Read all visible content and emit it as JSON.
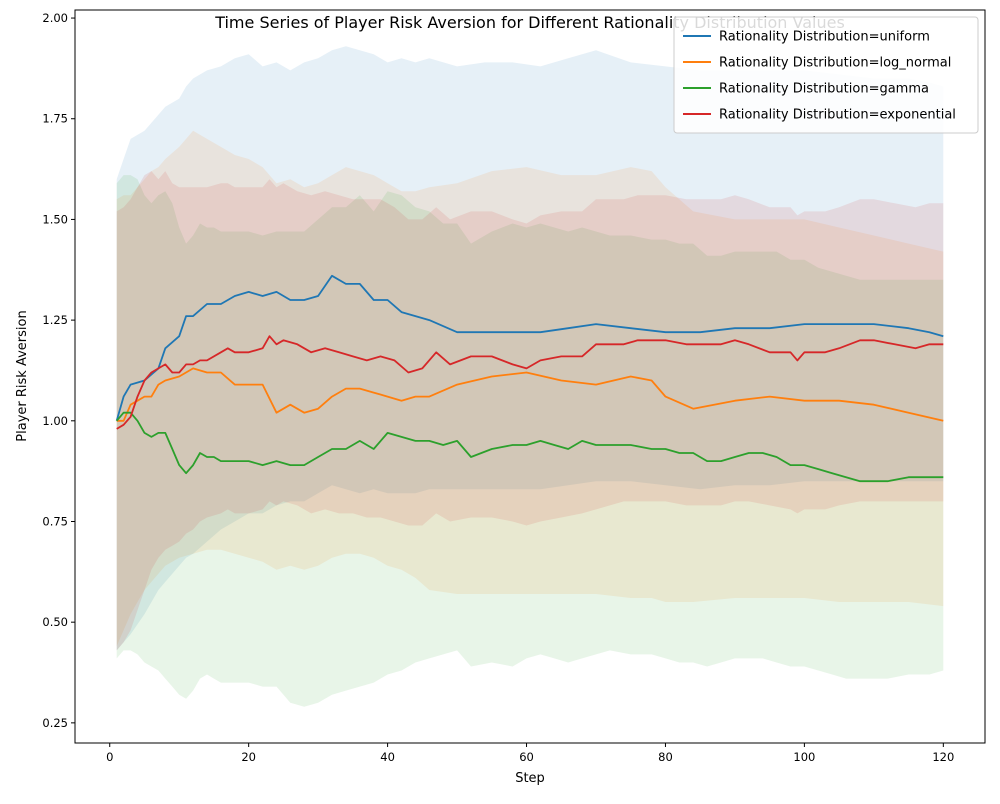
{
  "chart_data": {
    "type": "line",
    "title": "Time Series of Player Risk Aversion for Different Rationality Distribution Values",
    "xlabel": "Step",
    "ylabel": "Player Risk Aversion",
    "xlim": [
      -5,
      126
    ],
    "ylim": [
      0.2,
      2.02
    ],
    "xticks": [
      0,
      20,
      40,
      60,
      80,
      100,
      120
    ],
    "yticks": [
      0.25,
      0.5,
      0.75,
      1.0,
      1.25,
      1.5,
      1.75,
      2.0
    ],
    "legend_position": "upper-right",
    "grid": false,
    "band_opacity": 0.11,
    "series": [
      {
        "name": "Rationality Distribution=uniform",
        "color": "#1f77b4",
        "x": [
          1,
          2,
          3,
          5,
          7,
          8,
          10,
          11,
          12,
          14,
          16,
          18,
          20,
          22,
          24,
          26,
          28,
          30,
          32,
          34,
          36,
          38,
          40,
          42,
          44,
          46,
          50,
          54,
          58,
          62,
          66,
          70,
          75,
          80,
          85,
          90,
          95,
          100,
          105,
          110,
          115,
          118,
          120
        ],
        "y": [
          1.0,
          1.06,
          1.09,
          1.1,
          1.13,
          1.18,
          1.21,
          1.26,
          1.26,
          1.29,
          1.29,
          1.31,
          1.32,
          1.31,
          1.32,
          1.3,
          1.3,
          1.31,
          1.36,
          1.34,
          1.34,
          1.3,
          1.3,
          1.27,
          1.26,
          1.25,
          1.22,
          1.22,
          1.22,
          1.22,
          1.23,
          1.24,
          1.23,
          1.22,
          1.22,
          1.23,
          1.23,
          1.24,
          1.24,
          1.24,
          1.23,
          1.22,
          1.21
        ],
        "lower": [
          0.43,
          0.45,
          0.47,
          0.52,
          0.58,
          0.6,
          0.64,
          0.66,
          0.67,
          0.7,
          0.73,
          0.75,
          0.77,
          0.77,
          0.79,
          0.8,
          0.8,
          0.82,
          0.84,
          0.83,
          0.82,
          0.83,
          0.82,
          0.82,
          0.82,
          0.83,
          0.83,
          0.83,
          0.83,
          0.83,
          0.84,
          0.85,
          0.85,
          0.84,
          0.83,
          0.84,
          0.84,
          0.85,
          0.85,
          0.85,
          0.85,
          0.85,
          0.85
        ],
        "upper": [
          1.6,
          1.65,
          1.7,
          1.72,
          1.76,
          1.78,
          1.8,
          1.83,
          1.85,
          1.87,
          1.88,
          1.9,
          1.91,
          1.88,
          1.89,
          1.87,
          1.89,
          1.9,
          1.92,
          1.93,
          1.92,
          1.91,
          1.89,
          1.9,
          1.89,
          1.9,
          1.88,
          1.89,
          1.89,
          1.88,
          1.9,
          1.92,
          1.89,
          1.88,
          1.87,
          1.87,
          1.87,
          1.87,
          1.86,
          1.85,
          1.85,
          1.84,
          1.83
        ]
      },
      {
        "name": "Rationality Distribution=log_normal",
        "color": "#ff7f0e",
        "x": [
          1,
          2,
          3,
          4,
          5,
          6,
          7,
          8,
          10,
          12,
          14,
          16,
          18,
          20,
          22,
          24,
          26,
          28,
          30,
          32,
          34,
          36,
          38,
          40,
          42,
          44,
          46,
          50,
          55,
          60,
          65,
          70,
          75,
          78,
          80,
          84,
          90,
          95,
          100,
          105,
          110,
          115,
          120
        ],
        "y": [
          1.0,
          1.0,
          1.04,
          1.05,
          1.06,
          1.06,
          1.09,
          1.1,
          1.11,
          1.13,
          1.12,
          1.12,
          1.09,
          1.09,
          1.09,
          1.02,
          1.04,
          1.02,
          1.03,
          1.06,
          1.08,
          1.08,
          1.07,
          1.06,
          1.05,
          1.06,
          1.06,
          1.09,
          1.11,
          1.12,
          1.1,
          1.09,
          1.11,
          1.1,
          1.06,
          1.03,
          1.05,
          1.06,
          1.05,
          1.05,
          1.04,
          1.02,
          1.0
        ],
        "lower": [
          0.44,
          0.48,
          0.52,
          0.55,
          0.58,
          0.6,
          0.62,
          0.64,
          0.66,
          0.67,
          0.68,
          0.68,
          0.67,
          0.66,
          0.65,
          0.63,
          0.64,
          0.63,
          0.64,
          0.66,
          0.67,
          0.67,
          0.66,
          0.64,
          0.63,
          0.61,
          0.58,
          0.57,
          0.57,
          0.57,
          0.57,
          0.57,
          0.56,
          0.56,
          0.55,
          0.55,
          0.56,
          0.56,
          0.56,
          0.55,
          0.55,
          0.55,
          0.54
        ],
        "upper": [
          1.55,
          1.56,
          1.56,
          1.58,
          1.6,
          1.62,
          1.63,
          1.65,
          1.68,
          1.72,
          1.7,
          1.68,
          1.66,
          1.65,
          1.63,
          1.59,
          1.6,
          1.58,
          1.59,
          1.61,
          1.63,
          1.62,
          1.61,
          1.59,
          1.57,
          1.57,
          1.58,
          1.59,
          1.62,
          1.63,
          1.61,
          1.61,
          1.63,
          1.62,
          1.58,
          1.52,
          1.5,
          1.5,
          1.5,
          1.48,
          1.46,
          1.44,
          1.42
        ]
      },
      {
        "name": "Rationality Distribution=gamma",
        "color": "#2ca02c",
        "x": [
          1,
          2,
          3,
          4,
          5,
          6,
          7,
          8,
          9,
          10,
          11,
          12,
          13,
          14,
          15,
          16,
          18,
          20,
          22,
          24,
          26,
          28,
          30,
          32,
          34,
          36,
          38,
          40,
          42,
          44,
          46,
          48,
          50,
          52,
          55,
          58,
          60,
          62,
          64,
          66,
          68,
          70,
          72,
          75,
          78,
          80,
          82,
          84,
          86,
          88,
          90,
          92,
          94,
          96,
          98,
          100,
          102,
          104,
          106,
          108,
          110,
          112,
          115,
          118,
          120
        ],
        "y": [
          1.0,
          1.02,
          1.02,
          1.0,
          0.97,
          0.96,
          0.97,
          0.97,
          0.93,
          0.89,
          0.87,
          0.89,
          0.92,
          0.91,
          0.91,
          0.9,
          0.9,
          0.9,
          0.89,
          0.9,
          0.89,
          0.89,
          0.91,
          0.93,
          0.93,
          0.95,
          0.93,
          0.97,
          0.96,
          0.95,
          0.95,
          0.94,
          0.95,
          0.91,
          0.93,
          0.94,
          0.94,
          0.95,
          0.94,
          0.93,
          0.95,
          0.94,
          0.94,
          0.94,
          0.93,
          0.93,
          0.92,
          0.92,
          0.9,
          0.9,
          0.91,
          0.92,
          0.92,
          0.91,
          0.89,
          0.89,
          0.88,
          0.87,
          0.86,
          0.85,
          0.85,
          0.85,
          0.86,
          0.86,
          0.86
        ],
        "lower": [
          0.41,
          0.43,
          0.43,
          0.42,
          0.4,
          0.39,
          0.38,
          0.36,
          0.34,
          0.32,
          0.31,
          0.33,
          0.36,
          0.37,
          0.36,
          0.35,
          0.35,
          0.35,
          0.34,
          0.34,
          0.3,
          0.29,
          0.3,
          0.32,
          0.33,
          0.34,
          0.35,
          0.37,
          0.38,
          0.4,
          0.41,
          0.42,
          0.43,
          0.39,
          0.4,
          0.39,
          0.41,
          0.42,
          0.41,
          0.4,
          0.41,
          0.42,
          0.43,
          0.42,
          0.42,
          0.41,
          0.4,
          0.4,
          0.39,
          0.4,
          0.41,
          0.41,
          0.41,
          0.4,
          0.39,
          0.39,
          0.38,
          0.37,
          0.36,
          0.36,
          0.36,
          0.36,
          0.37,
          0.37,
          0.38
        ],
        "upper": [
          1.59,
          1.61,
          1.61,
          1.6,
          1.56,
          1.54,
          1.56,
          1.57,
          1.54,
          1.48,
          1.44,
          1.46,
          1.49,
          1.48,
          1.48,
          1.47,
          1.47,
          1.47,
          1.46,
          1.47,
          1.47,
          1.47,
          1.5,
          1.53,
          1.53,
          1.56,
          1.52,
          1.57,
          1.56,
          1.53,
          1.52,
          1.49,
          1.49,
          1.44,
          1.47,
          1.49,
          1.48,
          1.49,
          1.48,
          1.47,
          1.48,
          1.47,
          1.46,
          1.46,
          1.45,
          1.45,
          1.44,
          1.44,
          1.41,
          1.41,
          1.42,
          1.42,
          1.42,
          1.42,
          1.4,
          1.4,
          1.38,
          1.37,
          1.36,
          1.35,
          1.35,
          1.35,
          1.35,
          1.35,
          1.35
        ]
      },
      {
        "name": "Rationality Distribution=exponential",
        "color": "#d62728",
        "x": [
          1,
          2,
          3,
          4,
          5,
          6,
          7,
          8,
          9,
          10,
          11,
          12,
          13,
          14,
          16,
          17,
          18,
          20,
          22,
          23,
          24,
          25,
          27,
          29,
          31,
          33,
          35,
          37,
          39,
          41,
          43,
          45,
          47,
          49,
          52,
          55,
          58,
          60,
          62,
          65,
          68,
          70,
          72,
          74,
          76,
          78,
          80,
          83,
          86,
          88,
          90,
          92,
          95,
          98,
          99,
          100,
          103,
          105,
          108,
          110,
          113,
          116,
          118,
          120
        ],
        "y": [
          0.98,
          0.99,
          1.01,
          1.06,
          1.1,
          1.12,
          1.13,
          1.14,
          1.12,
          1.12,
          1.14,
          1.14,
          1.15,
          1.15,
          1.17,
          1.18,
          1.17,
          1.17,
          1.18,
          1.21,
          1.19,
          1.2,
          1.19,
          1.17,
          1.18,
          1.17,
          1.16,
          1.15,
          1.16,
          1.15,
          1.12,
          1.13,
          1.17,
          1.14,
          1.16,
          1.16,
          1.14,
          1.13,
          1.15,
          1.16,
          1.16,
          1.19,
          1.19,
          1.19,
          1.2,
          1.2,
          1.2,
          1.19,
          1.19,
          1.19,
          1.2,
          1.19,
          1.17,
          1.17,
          1.15,
          1.17,
          1.17,
          1.18,
          1.2,
          1.2,
          1.19,
          1.18,
          1.19,
          1.19
        ],
        "lower": [
          0.43,
          0.45,
          0.48,
          0.53,
          0.58,
          0.63,
          0.66,
          0.68,
          0.69,
          0.7,
          0.72,
          0.73,
          0.75,
          0.76,
          0.77,
          0.78,
          0.77,
          0.77,
          0.78,
          0.8,
          0.79,
          0.8,
          0.79,
          0.77,
          0.78,
          0.77,
          0.77,
          0.76,
          0.76,
          0.75,
          0.74,
          0.74,
          0.77,
          0.75,
          0.76,
          0.76,
          0.75,
          0.74,
          0.75,
          0.76,
          0.77,
          0.78,
          0.79,
          0.8,
          0.8,
          0.8,
          0.8,
          0.79,
          0.79,
          0.79,
          0.8,
          0.8,
          0.79,
          0.78,
          0.77,
          0.78,
          0.78,
          0.79,
          0.8,
          0.8,
          0.8,
          0.8,
          0.8,
          0.8
        ],
        "upper": [
          1.52,
          1.53,
          1.55,
          1.58,
          1.61,
          1.62,
          1.6,
          1.62,
          1.59,
          1.58,
          1.58,
          1.58,
          1.58,
          1.58,
          1.59,
          1.59,
          1.58,
          1.58,
          1.58,
          1.6,
          1.58,
          1.59,
          1.57,
          1.56,
          1.57,
          1.56,
          1.55,
          1.55,
          1.55,
          1.53,
          1.5,
          1.5,
          1.53,
          1.5,
          1.52,
          1.52,
          1.5,
          1.49,
          1.51,
          1.52,
          1.52,
          1.55,
          1.55,
          1.55,
          1.56,
          1.56,
          1.56,
          1.55,
          1.55,
          1.55,
          1.56,
          1.55,
          1.53,
          1.53,
          1.51,
          1.52,
          1.52,
          1.53,
          1.55,
          1.55,
          1.54,
          1.53,
          1.54,
          1.54
        ]
      }
    ]
  }
}
